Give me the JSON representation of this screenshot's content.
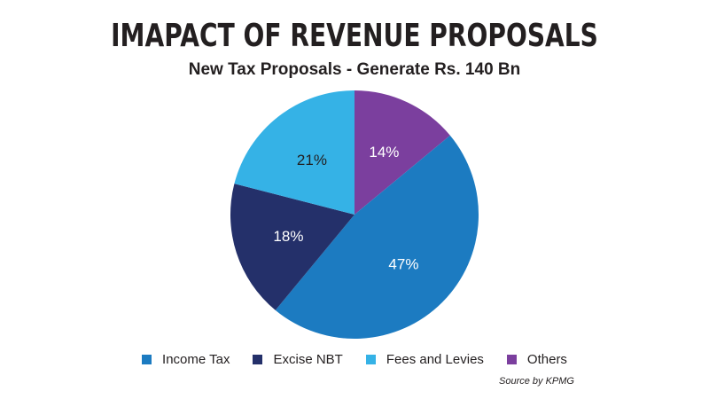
{
  "title": "IMAPACT OF REVENUE PROPOSALS",
  "subtitle": "New Tax Proposals - Generate Rs. 140 Bn",
  "source": "Source by KPMG",
  "chart_data": {
    "type": "pie",
    "title": "IMAPACT OF REVENUE PROPOSALS",
    "subtitle": "New Tax Proposals - Generate Rs. 140 Bn",
    "legend_position": "bottom",
    "start": "12 o'clock",
    "direction": "clockwise",
    "slices": [
      {
        "label": "Others",
        "value": 14,
        "display": "14%",
        "color": "#7b3f9e",
        "label_color": "#ffffff"
      },
      {
        "label": "Income Tax",
        "value": 47,
        "display": "47%",
        "color": "#1c7bc1",
        "label_color": "#ffffff"
      },
      {
        "label": "Excise NBT",
        "value": 18,
        "display": "18%",
        "color": "#24306a",
        "label_color": "#ffffff"
      },
      {
        "label": "Fees and Levies",
        "value": 21,
        "display": "21%",
        "color": "#35b2e6",
        "label_color": "#231f20"
      }
    ],
    "legend": [
      "Income Tax",
      "Excise NBT",
      "Fees and Levies",
      "Others"
    ]
  }
}
